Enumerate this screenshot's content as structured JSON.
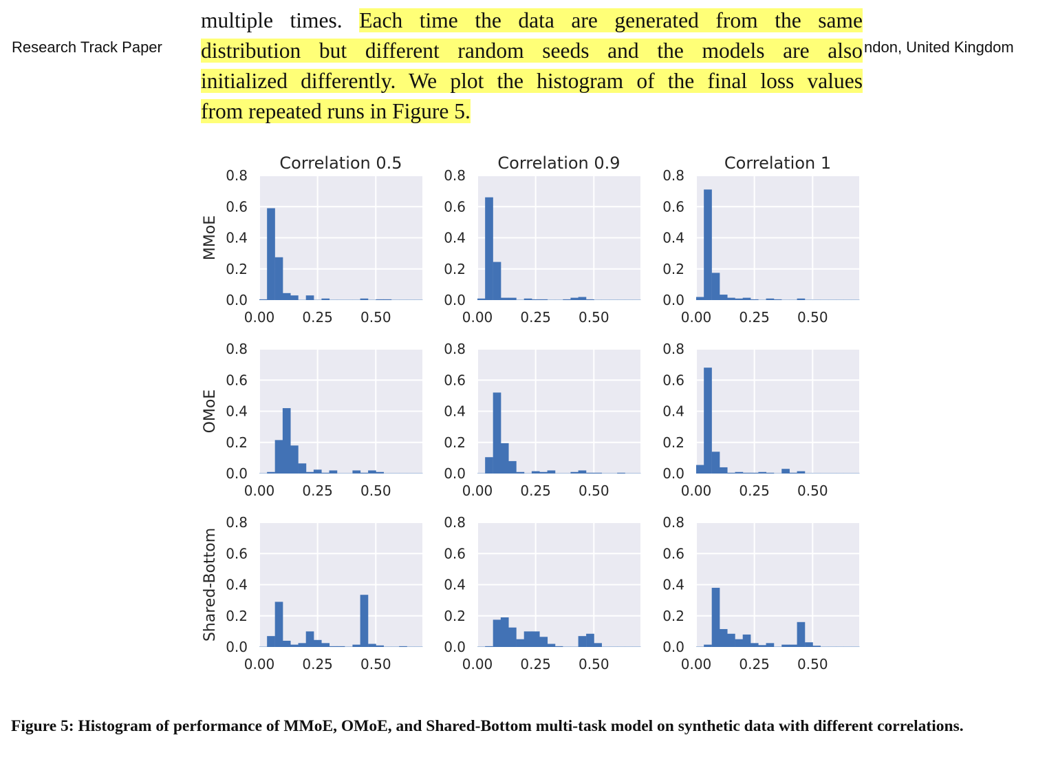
{
  "header": {
    "left": "Research Track Paper",
    "right": "ndon, United Kingdom"
  },
  "body_text": {
    "lines": [
      {
        "plain": "multiple times. ",
        "highlight": "Each time the data are generated from the same"
      },
      {
        "plain": "",
        "highlight": "distribution but different random seeds and the models are also"
      },
      {
        "plain": "",
        "highlight": "initialized differently. We plot the histogram of the final loss values"
      },
      {
        "plain": "",
        "highlight": "from repeated runs in Figure 5."
      }
    ],
    "highlight_color": "#ffff77"
  },
  "figure": {
    "caption": "Figure 5: Histogram of performance of MMoE, OMoE, and Shared-Bottom multi-task model on synthetic data with different correlations."
  },
  "colors": {
    "bar": "#4272b5",
    "panel_bg": "#eaeaf2",
    "grid": "#ffffff",
    "text": "#262626"
  },
  "chart_data": {
    "type": "bar",
    "title": "Histogram of performance of MMoE, OMoE, and Shared-Bottom multi-task model on synthetic data with different correlations",
    "layout": "3x3 grid of histograms",
    "column_titles": [
      "Correlation 0.5",
      "Correlation 0.9",
      "Correlation 1"
    ],
    "row_labels": [
      "MMoE",
      "OMoE",
      "Shared-Bottom"
    ],
    "xlim": [
      0,
      0.7
    ],
    "ylim": [
      0,
      0.8
    ],
    "xticks": [
      0.0,
      0.25,
      0.5
    ],
    "xtick_labels": [
      "0.00",
      "0.25",
      "0.50"
    ],
    "yticks": [
      0.0,
      0.2,
      0.4,
      0.6,
      0.8
    ],
    "ytick_labels": [
      "0.0",
      "0.2",
      "0.4",
      "0.6",
      "0.8"
    ],
    "grid": true,
    "bin_width": 0.0333,
    "bin_starts": [
      0.0,
      0.033,
      0.067,
      0.1,
      0.133,
      0.167,
      0.2,
      0.233,
      0.267,
      0.3,
      0.333,
      0.367,
      0.4,
      0.433,
      0.467,
      0.5,
      0.533,
      0.567,
      0.6,
      0.633,
      0.667
    ],
    "panels": [
      {
        "row": "MMoE",
        "column": "Correlation 0.5",
        "values": [
          0.005,
          0.59,
          0.275,
          0.045,
          0.03,
          0.002,
          0.03,
          0.002,
          0.01,
          0.002,
          0.002,
          0.002,
          0.002,
          0.01,
          0.002,
          0.005,
          0.005,
          0.002,
          0.002,
          0.002,
          0.002
        ]
      },
      {
        "row": "MMoE",
        "column": "Correlation 0.9",
        "values": [
          0.01,
          0.66,
          0.245,
          0.015,
          0.015,
          0.002,
          0.01,
          0.005,
          0.005,
          0.002,
          0.002,
          0.005,
          0.015,
          0.02,
          0.005,
          0.002,
          0.002,
          0.002,
          0.002,
          0.002,
          0.002
        ]
      },
      {
        "row": "MMoE",
        "column": "Correlation 1",
        "values": [
          0.02,
          0.71,
          0.175,
          0.035,
          0.015,
          0.01,
          0.015,
          0.005,
          0.002,
          0.01,
          0.005,
          0.002,
          0.002,
          0.01,
          0.002,
          0.002,
          0.002,
          0.002,
          0.002,
          0.002,
          0.002
        ]
      },
      {
        "row": "OMoE",
        "column": "Correlation 0.5",
        "values": [
          0.002,
          0.01,
          0.215,
          0.42,
          0.18,
          0.065,
          0.01,
          0.025,
          0.005,
          0.02,
          0.002,
          0.002,
          0.02,
          0.005,
          0.02,
          0.01,
          0.002,
          0.002,
          0.002,
          0.002,
          0.002
        ]
      },
      {
        "row": "OMoE",
        "column": "Correlation 0.9",
        "values": [
          0.002,
          0.105,
          0.52,
          0.195,
          0.08,
          0.01,
          0.002,
          0.015,
          0.01,
          0.02,
          0.002,
          0.002,
          0.01,
          0.02,
          0.005,
          0.005,
          0.002,
          0.002,
          0.005,
          0.002,
          0.002
        ]
      },
      {
        "row": "OMoE",
        "column": "Correlation 1",
        "values": [
          0.055,
          0.68,
          0.14,
          0.04,
          0.005,
          0.01,
          0.005,
          0.005,
          0.01,
          0.005,
          0.002,
          0.03,
          0.005,
          0.015,
          0.002,
          0.002,
          0.002,
          0.002,
          0.002,
          0.002,
          0.002
        ]
      },
      {
        "row": "Shared-Bottom",
        "column": "Correlation 0.5",
        "values": [
          0.002,
          0.07,
          0.29,
          0.04,
          0.015,
          0.025,
          0.1,
          0.045,
          0.025,
          0.005,
          0.005,
          0.002,
          0.015,
          0.335,
          0.02,
          0.01,
          0.002,
          0.002,
          0.005,
          0.002,
          0.002
        ]
      },
      {
        "row": "Shared-Bottom",
        "column": "Correlation 0.9",
        "values": [
          0.002,
          0.005,
          0.175,
          0.19,
          0.125,
          0.05,
          0.1,
          0.1,
          0.065,
          0.02,
          0.005,
          0.002,
          0.002,
          0.07,
          0.085,
          0.025,
          0.002,
          0.002,
          0.002,
          0.002,
          0.002
        ]
      },
      {
        "row": "Shared-Bottom",
        "column": "Correlation 1",
        "values": [
          0.002,
          0.015,
          0.38,
          0.115,
          0.085,
          0.05,
          0.08,
          0.025,
          0.012,
          0.025,
          0.002,
          0.015,
          0.015,
          0.16,
          0.03,
          0.008,
          0.002,
          0.002,
          0.002,
          0.002,
          0.002
        ]
      }
    ]
  }
}
